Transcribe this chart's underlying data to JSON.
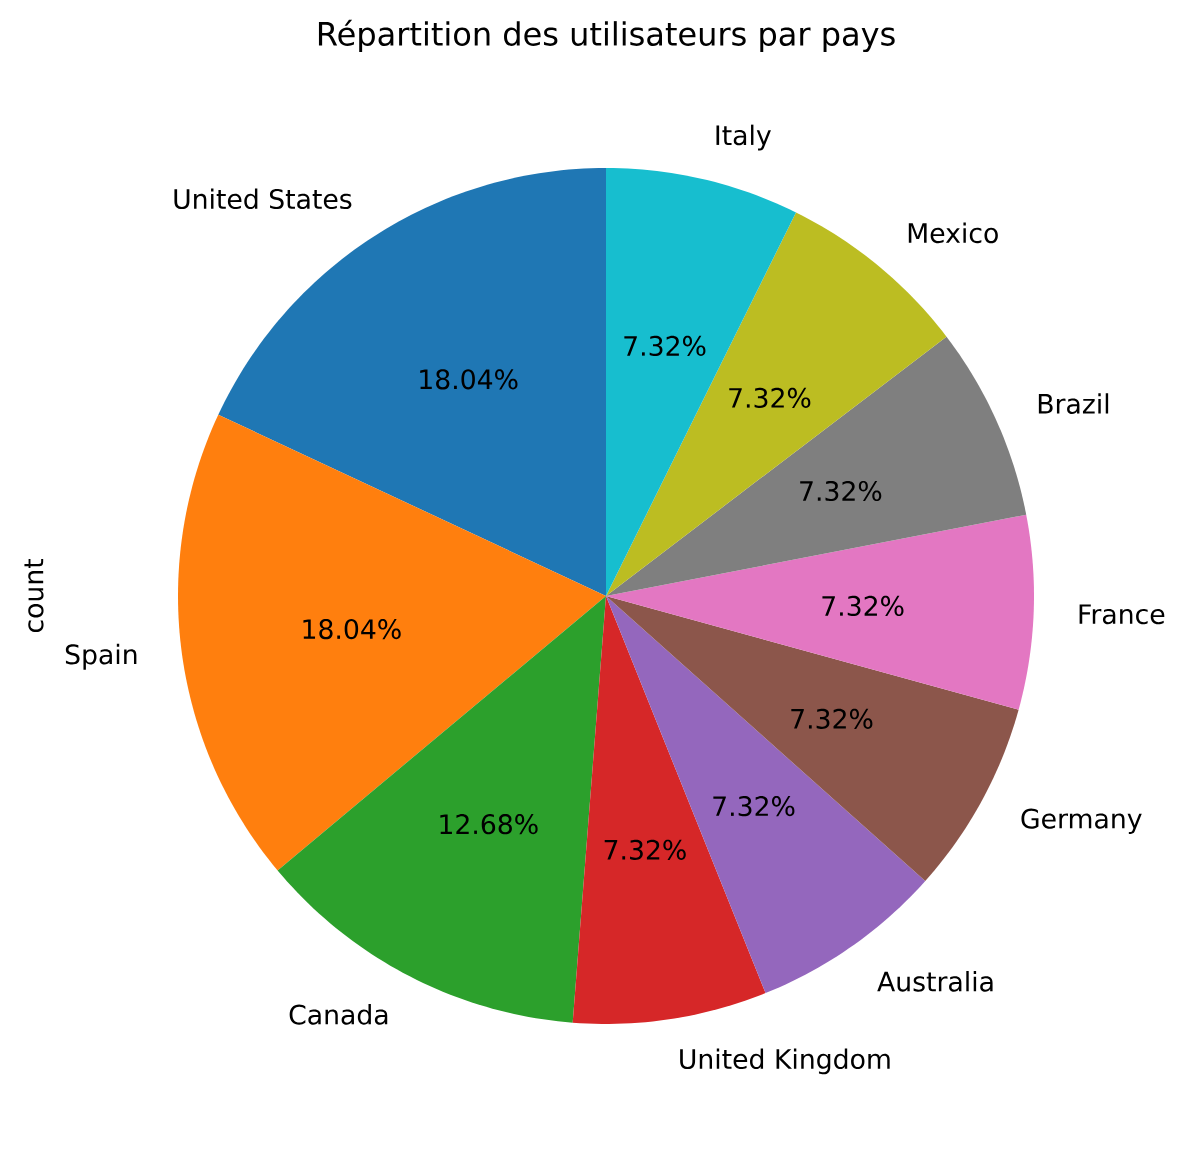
{
  "chart_data": {
    "type": "pie",
    "title": "Répartition des utilisateurs par pays",
    "ylabel": "count",
    "categories": [
      "United States",
      "Spain",
      "Canada",
      "United Kingdom",
      "Australia",
      "Germany",
      "France",
      "Brazil",
      "Mexico",
      "Italy"
    ],
    "values": [
      18.04,
      18.04,
      12.68,
      7.32,
      7.32,
      7.32,
      7.32,
      7.32,
      7.32,
      7.32
    ],
    "value_labels": [
      "18.04%",
      "18.04%",
      "12.68%",
      "7.32%",
      "7.32%",
      "7.32%",
      "7.32%",
      "7.32%",
      "7.32%",
      "7.32%"
    ],
    "colors": [
      "#1f77b4",
      "#ff7f0e",
      "#2ca02c",
      "#d62728",
      "#9467bd",
      "#8c564b",
      "#e377c2",
      "#7f7f7f",
      "#bcbd22",
      "#17becf"
    ]
  }
}
